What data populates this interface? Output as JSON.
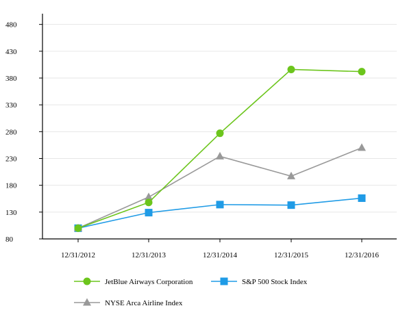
{
  "chart_data": {
    "type": "line",
    "title": "",
    "xlabel": "",
    "ylabel": "",
    "categories": [
      "12/31/2012",
      "12/31/2013",
      "12/31/2014",
      "12/31/2015",
      "12/31/2016"
    ],
    "ylim": [
      80,
      500
    ],
    "yticks": [
      80,
      130,
      180,
      230,
      280,
      330,
      380,
      430,
      480
    ],
    "ytick_labels": [
      "80",
      "130",
      "180",
      "230",
      "280",
      "330",
      "380",
      "430",
      "480"
    ],
    "grid": true,
    "legend_position": "bottom",
    "series": [
      {
        "name": "JetBlue Airways Corporation",
        "values": [
          100,
          148,
          277,
          396,
          392
        ],
        "color": "#6cc51c",
        "marker": "circle"
      },
      {
        "name": "S&P 500 Stock Index",
        "values": [
          100,
          129,
          144,
          143,
          156
        ],
        "color": "#1f9be6",
        "marker": "square"
      },
      {
        "name": "NYSE Arca Airline Index",
        "values": [
          100,
          158,
          234,
          197,
          250
        ],
        "color": "#999999",
        "marker": "triangle"
      }
    ]
  }
}
